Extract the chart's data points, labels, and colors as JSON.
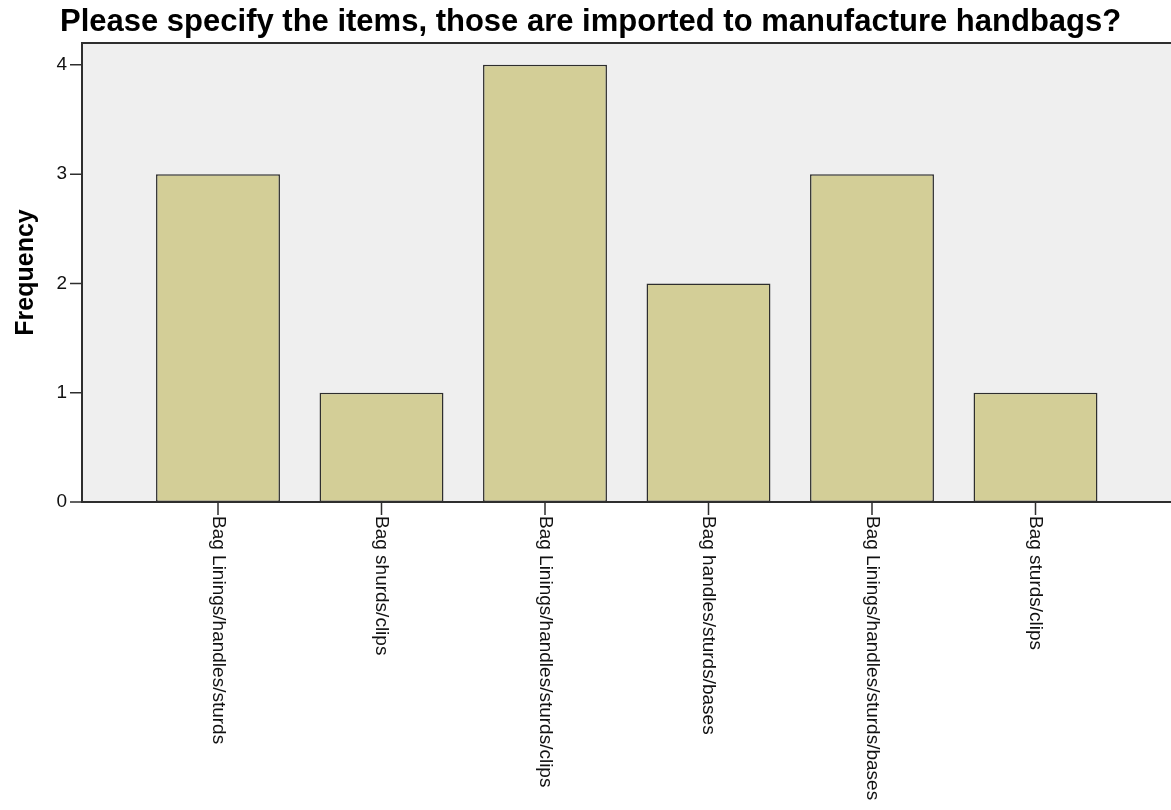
{
  "chart_data": {
    "type": "bar",
    "title": "Please specify the items, those are imported to manufacture handbags?",
    "ylabel": "Frequency",
    "categories": [
      "Bag Linings/handles/sturds",
      "Bag shurds/clips",
      "Bag Linings/handles/sturds/clips",
      "Bag handles/sturds/bases",
      "Bag Linings/handles/sturds/bases",
      "Bag sturds/clips"
    ],
    "values": [
      3,
      1,
      4,
      2,
      3,
      1
    ],
    "color": "#d3ce97",
    "ylim": [
      0,
      4.2
    ],
    "yticks": [
      0,
      1,
      2,
      3,
      4
    ]
  }
}
